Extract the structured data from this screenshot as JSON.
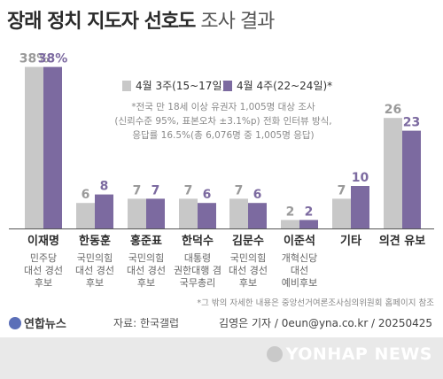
{
  "title": {
    "main": "장래 정치 지도자 선호도",
    "sub": "조사 결과"
  },
  "legend": [
    {
      "label": "4월 3주(15~17일)",
      "color": "#c8c8c8"
    },
    {
      "label": "4월 4주(22~24일)*",
      "color": "#7c6aa0"
    }
  ],
  "note": {
    "lines": [
      "*전국 만 18세 이상 유권자 1,005명 대상 조사",
      "(신뢰수준 95%, 표본오차 ±3.1%p) 전화 인터뷰 방식,",
      "응답률 16.5%(총 6,076명 중 1,005명 응답)"
    ]
  },
  "chart_data": {
    "type": "bar",
    "categories": [
      "이재명",
      "한동훈",
      "홍준표",
      "한덕수",
      "김문수",
      "이준석",
      "기타",
      "의견 유보"
    ],
    "category_notes": [
      [
        "민주당",
        "대선 경선",
        "후보"
      ],
      [
        "국민의힘",
        "대선 경선",
        "후보"
      ],
      [
        "국민의힘",
        "대선 경선",
        "후보"
      ],
      [
        "대통령",
        "권한대행 겸",
        "국무총리"
      ],
      [
        "국민의힘",
        "대선 경선",
        "후보"
      ],
      [
        "개혁신당",
        "대선",
        "예비후보"
      ],
      [],
      []
    ],
    "series": [
      {
        "name": "4월 3주(15~17일)",
        "values": [
          38,
          6,
          7,
          7,
          7,
          2,
          7,
          26
        ],
        "labels": [
          "38%",
          "6",
          "7",
          "7",
          "7",
          "2",
          "7",
          "26"
        ]
      },
      {
        "name": "4월 4주(22~24일)*",
        "values": [
          38,
          8,
          7,
          6,
          6,
          2,
          10,
          23
        ],
        "labels": [
          "38%",
          "8",
          "7",
          "6",
          "6",
          "2",
          "10",
          "23"
        ]
      }
    ],
    "ylim": [
      0,
      40
    ],
    "colors": [
      "#c8c8c8",
      "#7c6aa0"
    ],
    "label_colors": [
      "#9a9a9a",
      "#7c6aa0"
    ]
  },
  "source_note": "*그 밖의 자세한 내용은 중앙선거여론조사심의위원회 홈페이지 참조",
  "logo": "연합뉴스",
  "source": "자료: 한국갤럽",
  "credit": "김영은 기자 / 0eun@yna.co.kr / 20250425",
  "watermark": "YONHAP NEWS"
}
